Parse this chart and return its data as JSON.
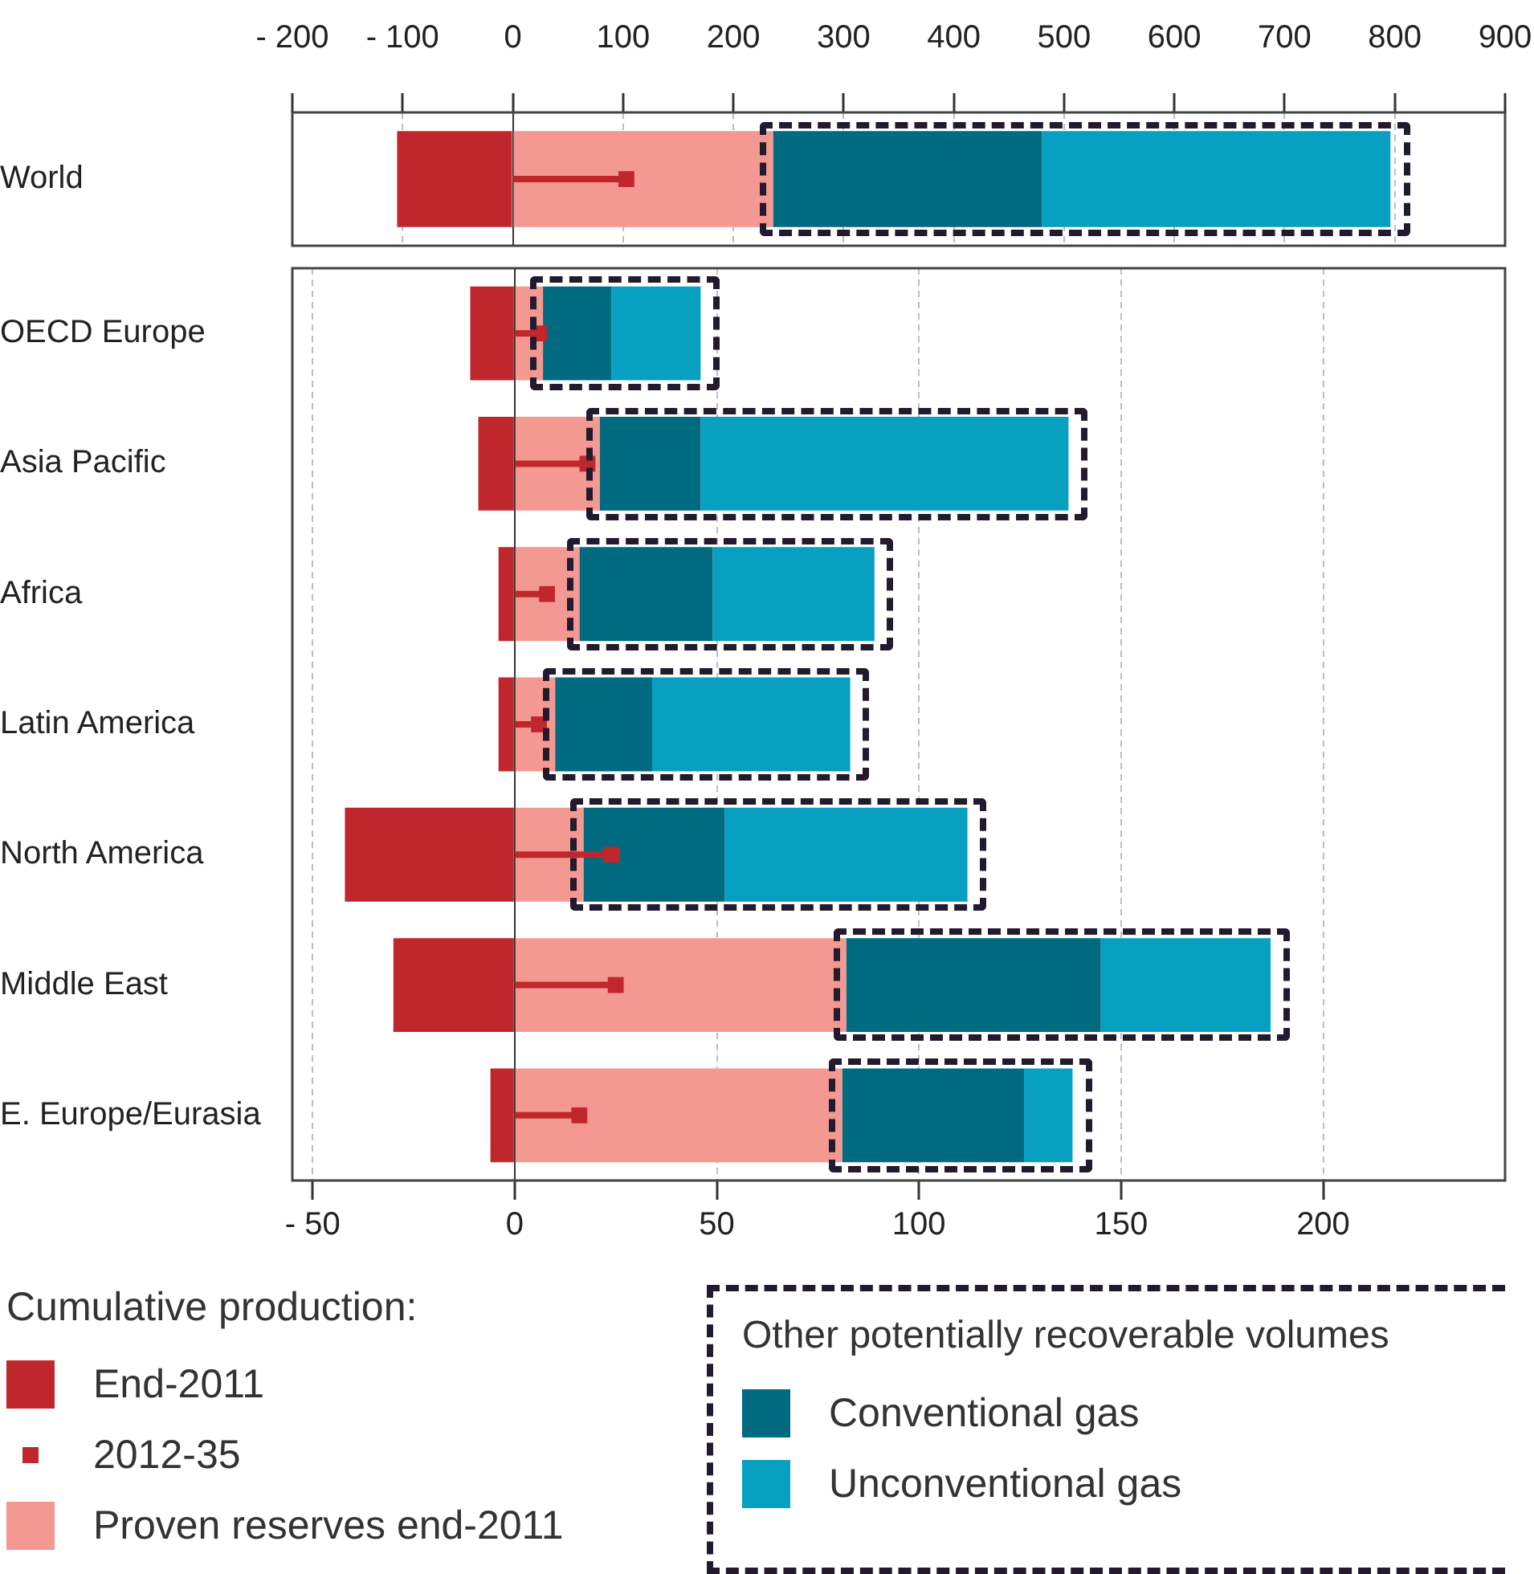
{
  "chart_data": [
    {
      "type": "bar",
      "orientation": "horizontal",
      "stacked": true,
      "categories": [
        "World"
      ],
      "series": [
        {
          "color": "#c0272d",
          "values": [
            -105
          ]
        },
        {
          "type": "lollipop",
          "color": "#c0272d",
          "values": [
            103
          ]
        },
        {
          "color": "#f49892",
          "values": [
            236
          ]
        },
        {
          "color": "#006a80",
          "values": [
            244
          ]
        },
        {
          "color": "#07a0c0",
          "values": [
            316
          ]
        }
      ],
      "xlim": [
        -200,
        900
      ],
      "xticks": [
        {
          "value": -200,
          "label": "- 200"
        },
        {
          "value": -100,
          "label": "- 100"
        },
        0,
        100,
        200,
        300,
        400,
        500,
        600,
        700,
        800,
        900
      ],
      "grid": "x"
    },
    {
      "type": "bar",
      "orientation": "horizontal",
      "stacked": true,
      "categories": [
        "OECD Europe",
        "Asia Pacific",
        "Africa",
        "Latin America",
        "North America",
        "Middle East",
        "E. Europe/Eurasia"
      ],
      "series": [
        {
          "name": "End-2011",
          "color": "#c0272d",
          "values": [
            -11,
            -9,
            -4,
            -4,
            -42,
            -30,
            -6
          ]
        },
        {
          "name": "2012-35",
          "type": "lollipop",
          "color": "#c0272d",
          "values": [
            6,
            18,
            8,
            6,
            24,
            25,
            16
          ]
        },
        {
          "name": "Proven reserves end-2011",
          "color": "#f49892",
          "values": [
            7,
            21,
            16,
            10,
            17,
            82,
            81
          ]
        },
        {
          "name": "Conventional gas",
          "color": "#006a80",
          "values": [
            17,
            25,
            33,
            24,
            35,
            63,
            45
          ]
        },
        {
          "name": "Unconventional gas",
          "color": "#07a0c0",
          "values": [
            22,
            91,
            40,
            49,
            60,
            42,
            12
          ]
        }
      ],
      "xlim": [
        -55,
        245
      ],
      "xticks": [
        {
          "value": -50,
          "label": "- 50"
        },
        0,
        50,
        100,
        150,
        200
      ],
      "grid": "x",
      "legend": "bottom",
      "legend_title": "Cumulative production:",
      "annotations": [
        "Other potentially recoverable volumes"
      ]
    }
  ]
}
